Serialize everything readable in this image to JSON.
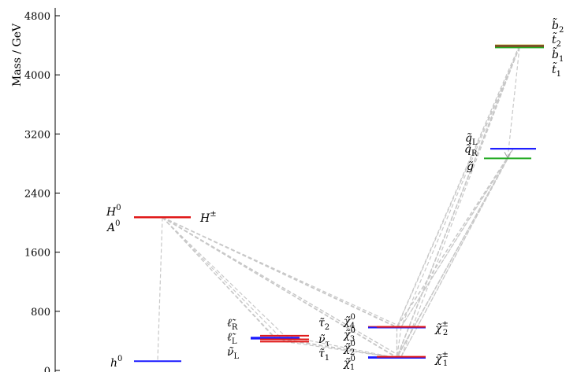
{
  "chart_data": {
    "type": "scatter",
    "ylabel": "Mass / GeV",
    "ylim": [
      0,
      4800
    ],
    "yticks": [
      0,
      800,
      1600,
      2400,
      3200,
      4000,
      4800
    ],
    "grid": false,
    "legend": "none",
    "levels": [
      {
        "id": "h0",
        "column": 0,
        "mass": 125,
        "color": "#1a1aff"
      },
      {
        "id": "H0",
        "column": 0,
        "mass": 2070,
        "color": "#1a1aff"
      },
      {
        "id": "A0",
        "column": 0,
        "mass": 2070,
        "color": "#e01818"
      },
      {
        "id": "Hpm",
        "column": 0,
        "mass": 2075,
        "color": "#e01818"
      },
      {
        "id": "lR",
        "column": 1,
        "mass": 445,
        "color": "#1a1aff"
      },
      {
        "id": "lL",
        "column": 1,
        "mass": 440,
        "color": "#1a1aff"
      },
      {
        "id": "nuL",
        "column": 1,
        "mass": 430,
        "color": "#1a1aff"
      },
      {
        "id": "tau2",
        "column": 1,
        "mass": 470,
        "color": "#e01818"
      },
      {
        "id": "nutau",
        "column": 1,
        "mass": 420,
        "color": "#e01818"
      },
      {
        "id": "tau1",
        "column": 1,
        "mass": 390,
        "color": "#e01818"
      },
      {
        "id": "chi04",
        "column": 2,
        "mass": 590,
        "color": "#e01818"
      },
      {
        "id": "chi03",
        "column": 2,
        "mass": 580,
        "color": "#1a1aff"
      },
      {
        "id": "chipm2",
        "column": 2,
        "mass": 590,
        "color": "#e01818"
      },
      {
        "id": "chi02",
        "column": 2,
        "mass": 180,
        "color": "#1a1aff"
      },
      {
        "id": "chi01",
        "column": 2,
        "mass": 170,
        "color": "#1a1aff"
      },
      {
        "id": "chipm1",
        "column": 2,
        "mass": 185,
        "color": "#e01818"
      },
      {
        "id": "qL",
        "column": 3,
        "mass": 3000,
        "color": "#1a1aff"
      },
      {
        "id": "qR",
        "column": 3,
        "mass": 3000,
        "color": "#1a1aff"
      },
      {
        "id": "gluino",
        "column": 3,
        "mass": 2870,
        "color": "#22aa22"
      },
      {
        "id": "b2",
        "column": 3,
        "mass": 4400,
        "color": "#c0a020"
      },
      {
        "id": "t2",
        "column": 3,
        "mass": 4390,
        "color": "#333333"
      },
      {
        "id": "b1",
        "column": 3,
        "mass": 4380,
        "color": "#e01818"
      },
      {
        "id": "t1",
        "column": 3,
        "mass": 4370,
        "color": "#22aa22"
      }
    ],
    "decays": [
      {
        "from": "H0",
        "to": "tau1"
      },
      {
        "from": "H0",
        "to": "tau2"
      },
      {
        "from": "H0",
        "to": "lR"
      },
      {
        "from": "H0",
        "to": "chi01"
      },
      {
        "from": "H0",
        "to": "chi02"
      },
      {
        "from": "H0",
        "to": "chi03"
      },
      {
        "from": "H0",
        "to": "chipm1"
      },
      {
        "from": "H0",
        "to": "chipm2"
      },
      {
        "from": "H0",
        "to": "h0"
      },
      {
        "from": "Hpm",
        "to": "nuL"
      },
      {
        "from": "Hpm",
        "to": "chi01"
      },
      {
        "from": "Hpm",
        "to": "chipm1"
      },
      {
        "from": "Hpm",
        "to": "chi04"
      },
      {
        "from": "tau2",
        "to": "chi01"
      },
      {
        "from": "lR",
        "to": "chi01"
      },
      {
        "from": "lL",
        "to": "chi01"
      },
      {
        "from": "tau1",
        "to": "chi01"
      },
      {
        "from": "nuL",
        "to": "chi01"
      },
      {
        "from": "chi04",
        "to": "chi01"
      },
      {
        "from": "chi03",
        "to": "chi01"
      },
      {
        "from": "chipm2",
        "to": "chi01"
      },
      {
        "from": "qL",
        "to": "chi01"
      },
      {
        "from": "qL",
        "to": "chi02"
      },
      {
        "from": "qL",
        "to": "chipm1"
      },
      {
        "from": "qL",
        "to": "chi03"
      },
      {
        "from": "qL",
        "to": "chi04"
      },
      {
        "from": "qL",
        "to": "chipm2"
      },
      {
        "from": "gluino",
        "to": "chi01"
      },
      {
        "from": "gluino",
        "to": "chipm1"
      },
      {
        "from": "gluino",
        "to": "chi02"
      },
      {
        "from": "gluino",
        "to": "chipm2"
      },
      {
        "from": "b1",
        "to": "chi01"
      },
      {
        "from": "b1",
        "to": "chipm1"
      },
      {
        "from": "b1",
        "to": "chi02"
      },
      {
        "from": "t1",
        "to": "chi01"
      },
      {
        "from": "t1",
        "to": "chipm2"
      },
      {
        "from": "t1",
        "to": "chi03"
      },
      {
        "from": "t2",
        "to": "chi02"
      },
      {
        "from": "b2",
        "to": "chi04"
      },
      {
        "from": "t1",
        "to": "gluino"
      }
    ],
    "labels": {
      "h0": {
        "base": "h",
        "sup": "0",
        "sub": ""
      },
      "H0": {
        "base": "H",
        "sup": "0",
        "sub": ""
      },
      "A0": {
        "base": "A",
        "sup": "0",
        "sub": ""
      },
      "Hpm": {
        "base": "H",
        "sup": "±",
        "sub": ""
      },
      "lR": {
        "base": "ℓ̃",
        "sup": "",
        "sub": "R"
      },
      "lL": {
        "base": "ℓ̃",
        "sup": "",
        "sub": "L"
      },
      "nuL": {
        "base": "ν̃",
        "sup": "",
        "sub": "L"
      },
      "tau2": {
        "base": "τ̃",
        "sup": "",
        "sub": "2"
      },
      "nutau": {
        "base": "ν̃",
        "sup": "",
        "sub": "τ"
      },
      "tau1": {
        "base": "τ̃",
        "sup": "",
        "sub": "1"
      },
      "chi04": {
        "base": "χ̃",
        "sup": "0",
        "sub": "4"
      },
      "chi03": {
        "base": "χ̃",
        "sup": "0",
        "sub": "3"
      },
      "chi02": {
        "base": "χ̃",
        "sup": "0",
        "sub": "2"
      },
      "chi01": {
        "base": "χ̃",
        "sup": "0",
        "sub": "1"
      },
      "chipm2": {
        "base": "χ̃",
        "sup": "±",
        "sub": "2"
      },
      "chipm1": {
        "base": "χ̃",
        "sup": "±",
        "sub": "1"
      },
      "qL": {
        "base": "q̃",
        "sup": "",
        "sub": "L"
      },
      "qR": {
        "base": "q̃",
        "sup": "",
        "sub": "R"
      },
      "gluino": {
        "base": "g̃",
        "sup": "",
        "sub": ""
      },
      "b2": {
        "base": "b̃",
        "sup": "",
        "sub": "2"
      },
      "t2": {
        "base": "t̃",
        "sup": "",
        "sub": "2"
      },
      "b1": {
        "base": "b̃",
        "sup": "",
        "sub": "1"
      },
      "t1": {
        "base": "t̃",
        "sup": "",
        "sub": "1"
      }
    }
  }
}
